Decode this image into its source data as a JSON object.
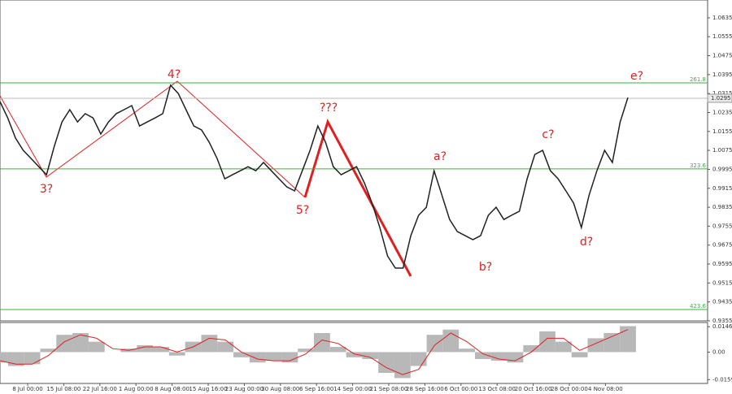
{
  "chart_data": {
    "type": "line",
    "color": "#202020",
    "values": [
      1.0281,
      1.0212,
      1.0127,
      1.0075,
      1.0041,
      1.0006,
      0.9972,
      1.0092,
      1.0195,
      1.0247,
      1.0195,
      1.023,
      1.0212,
      1.0144,
      1.0195,
      1.023,
      1.0247,
      1.0264,
      1.0178,
      1.0195,
      1.0212,
      1.023,
      1.035,
      1.0315,
      1.0247,
      1.0178,
      1.0161,
      1.0109,
      1.0041,
      0.9955,
      0.9972,
      0.9989,
      1.0006,
      0.9989,
      1.0024,
      0.9989,
      0.9955,
      0.9921,
      0.9904,
      0.9989,
      1.0075,
      1.0178,
      1.0109,
      1.0006,
      0.9972,
      0.9989,
      1.0006,
      0.9938,
      0.9852,
      0.9749,
      0.9629,
      0.9578,
      0.9578,
      0.9715,
      0.9801,
      0.9835,
      0.9989,
      0.9886,
      0.9783,
      0.9732,
      0.9715,
      0.9698,
      0.9715,
      0.9801,
      0.9835,
      0.9783,
      0.9801,
      0.9818,
      0.9955,
      1.0058,
      1.0075,
      0.9989,
      0.9955,
      0.9904,
      0.9852,
      0.9749,
      0.9886,
      0.9989,
      1.0075,
      1.0024,
      1.0195,
      1.0298
    ],
    "ylim": [
      0.9355,
      1.071
    ],
    "yticks": [
      1.0635,
      1.0555,
      1.0475,
      1.0395,
      1.0315,
      1.0235,
      1.0155,
      1.0075,
      0.9995,
      0.9915,
      0.9835,
      0.9755,
      0.9675,
      0.9595,
      0.9515,
      0.9435,
      0.9355
    ],
    "last_price": 1.0295,
    "levels": [
      {
        "label": "261.8",
        "value": 1.036
      },
      {
        "label": "323.6",
        "value": 0.9997
      },
      {
        "label": "423.6",
        "value": 0.9403
      }
    ],
    "level_color": "#3cb043",
    "annotations": [
      "3?",
      "4?",
      "5?",
      "???",
      "a?",
      "b?",
      "c?",
      "d?",
      "e?"
    ],
    "x_labels": [
      "8 Jul 00:00",
      "15 Jul 08:00",
      "22 Jul 16:00",
      "1 Aug 00:00",
      "8 Aug 08:00",
      "15 Aug 16:00",
      "23 Aug 00:00",
      "30 Aug 08:00",
      "6 Sep 16:00",
      "14 Sep 00:00",
      "21 Sep 08:00",
      "28 Sep 16:00",
      "6 Oct 00:00",
      "13 Oct 08:00",
      "20 Oct 16:00",
      "28 Oct 00:00",
      "4 Nov 08:00"
    ],
    "indicator": {
      "type": "bar",
      "color": "#b8b8b8",
      "values": [
        -0.006,
        -0.008,
        -0.007,
        0.002,
        0.01,
        0.011,
        0.006,
        0.0,
        0.002,
        0.004,
        0.003,
        -0.002,
        0.006,
        0.01,
        0.006,
        -0.003,
        -0.006,
        -0.005,
        -0.006,
        0.002,
        0.011,
        0.003,
        -0.003,
        -0.004,
        -0.012,
        -0.015,
        -0.008,
        0.01,
        0.013,
        0.002,
        -0.004,
        -0.005,
        -0.006,
        0.004,
        0.012,
        0.006,
        -0.003,
        0.008,
        0.011,
        0.015
      ],
      "signal": {
        "color": "#e02020",
        "values": [
          -0.005,
          -0.007,
          -0.007,
          -0.002,
          0.006,
          0.01,
          0.008,
          0.002,
          0.001,
          0.003,
          0.003,
          0.0,
          0.003,
          0.008,
          0.007,
          0.0,
          -0.004,
          -0.005,
          -0.005,
          -0.001,
          0.007,
          0.005,
          -0.001,
          -0.003,
          -0.009,
          -0.013,
          -0.01,
          0.004,
          0.011,
          0.006,
          -0.001,
          -0.004,
          -0.005,
          0.0,
          0.008,
          0.008,
          0.001,
          0.005,
          0.009,
          0.013
        ]
      },
      "ylim": [
        -0.0181,
        0.0171
      ],
      "yticks": [
        0.01467,
        {
          "value": 0,
          "label": "0.00"
        },
        -0.0159
      ]
    }
  }
}
